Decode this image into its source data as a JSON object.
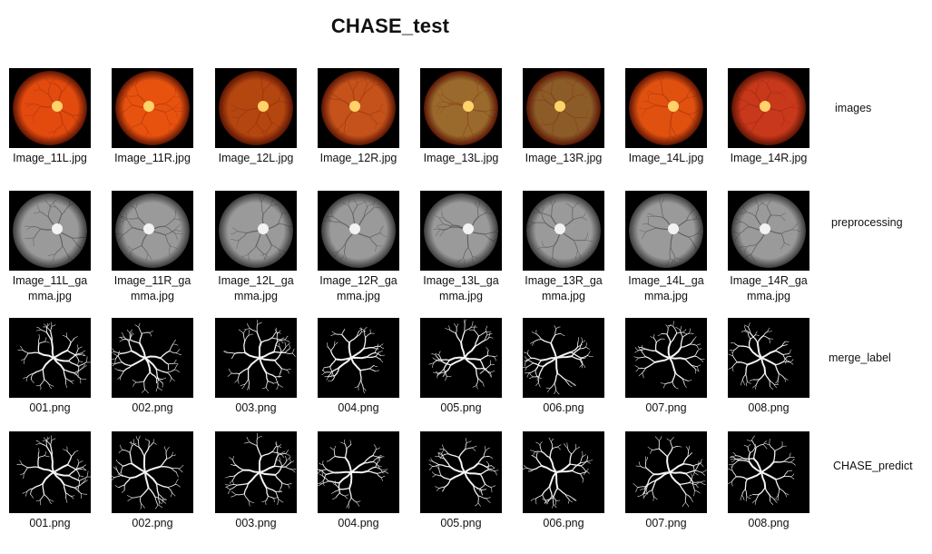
{
  "title": "CHASE_test",
  "rows": [
    {
      "label": "images",
      "kind": "fundus",
      "captions": [
        "Image_11L.jpg",
        "Image_11R.jpg",
        "Image_12L.jpg",
        "Image_12R.jpg",
        "Image_13L.jpg",
        "Image_13R.jpg",
        "Image_14L.jpg",
        "Image_14R.jpg"
      ]
    },
    {
      "label": "preprocessing",
      "kind": "gray",
      "captions": [
        "Image_11L_ga\nmma.jpg",
        "Image_11R_ga\nmma.jpg",
        "Image_12L_ga\nmma.jpg",
        "Image_12R_ga\nmma.jpg",
        "Image_13L_ga\nmma.jpg",
        "Image_13R_ga\nmma.jpg",
        "Image_14L_ga\nmma.jpg",
        "Image_14R_ga\nmma.jpg"
      ]
    },
    {
      "label": "merge_label",
      "kind": "vessel",
      "captions": [
        "001.png",
        "002.png",
        "003.png",
        "004.png",
        "005.png",
        "006.png",
        "007.png",
        "008.png"
      ]
    },
    {
      "label": "CHASE_predict",
      "kind": "vessel",
      "captions": [
        "001.png",
        "002.png",
        "003.png",
        "004.png",
        "005.png",
        "006.png",
        "007.png",
        "008.png"
      ]
    }
  ],
  "fundus_colors": [
    "#e24a0e",
    "#e8520f",
    "#b4460f",
    "#c4521a",
    "#9a6a2c",
    "#8c5c28",
    "#e0500f",
    "#c8381a"
  ]
}
